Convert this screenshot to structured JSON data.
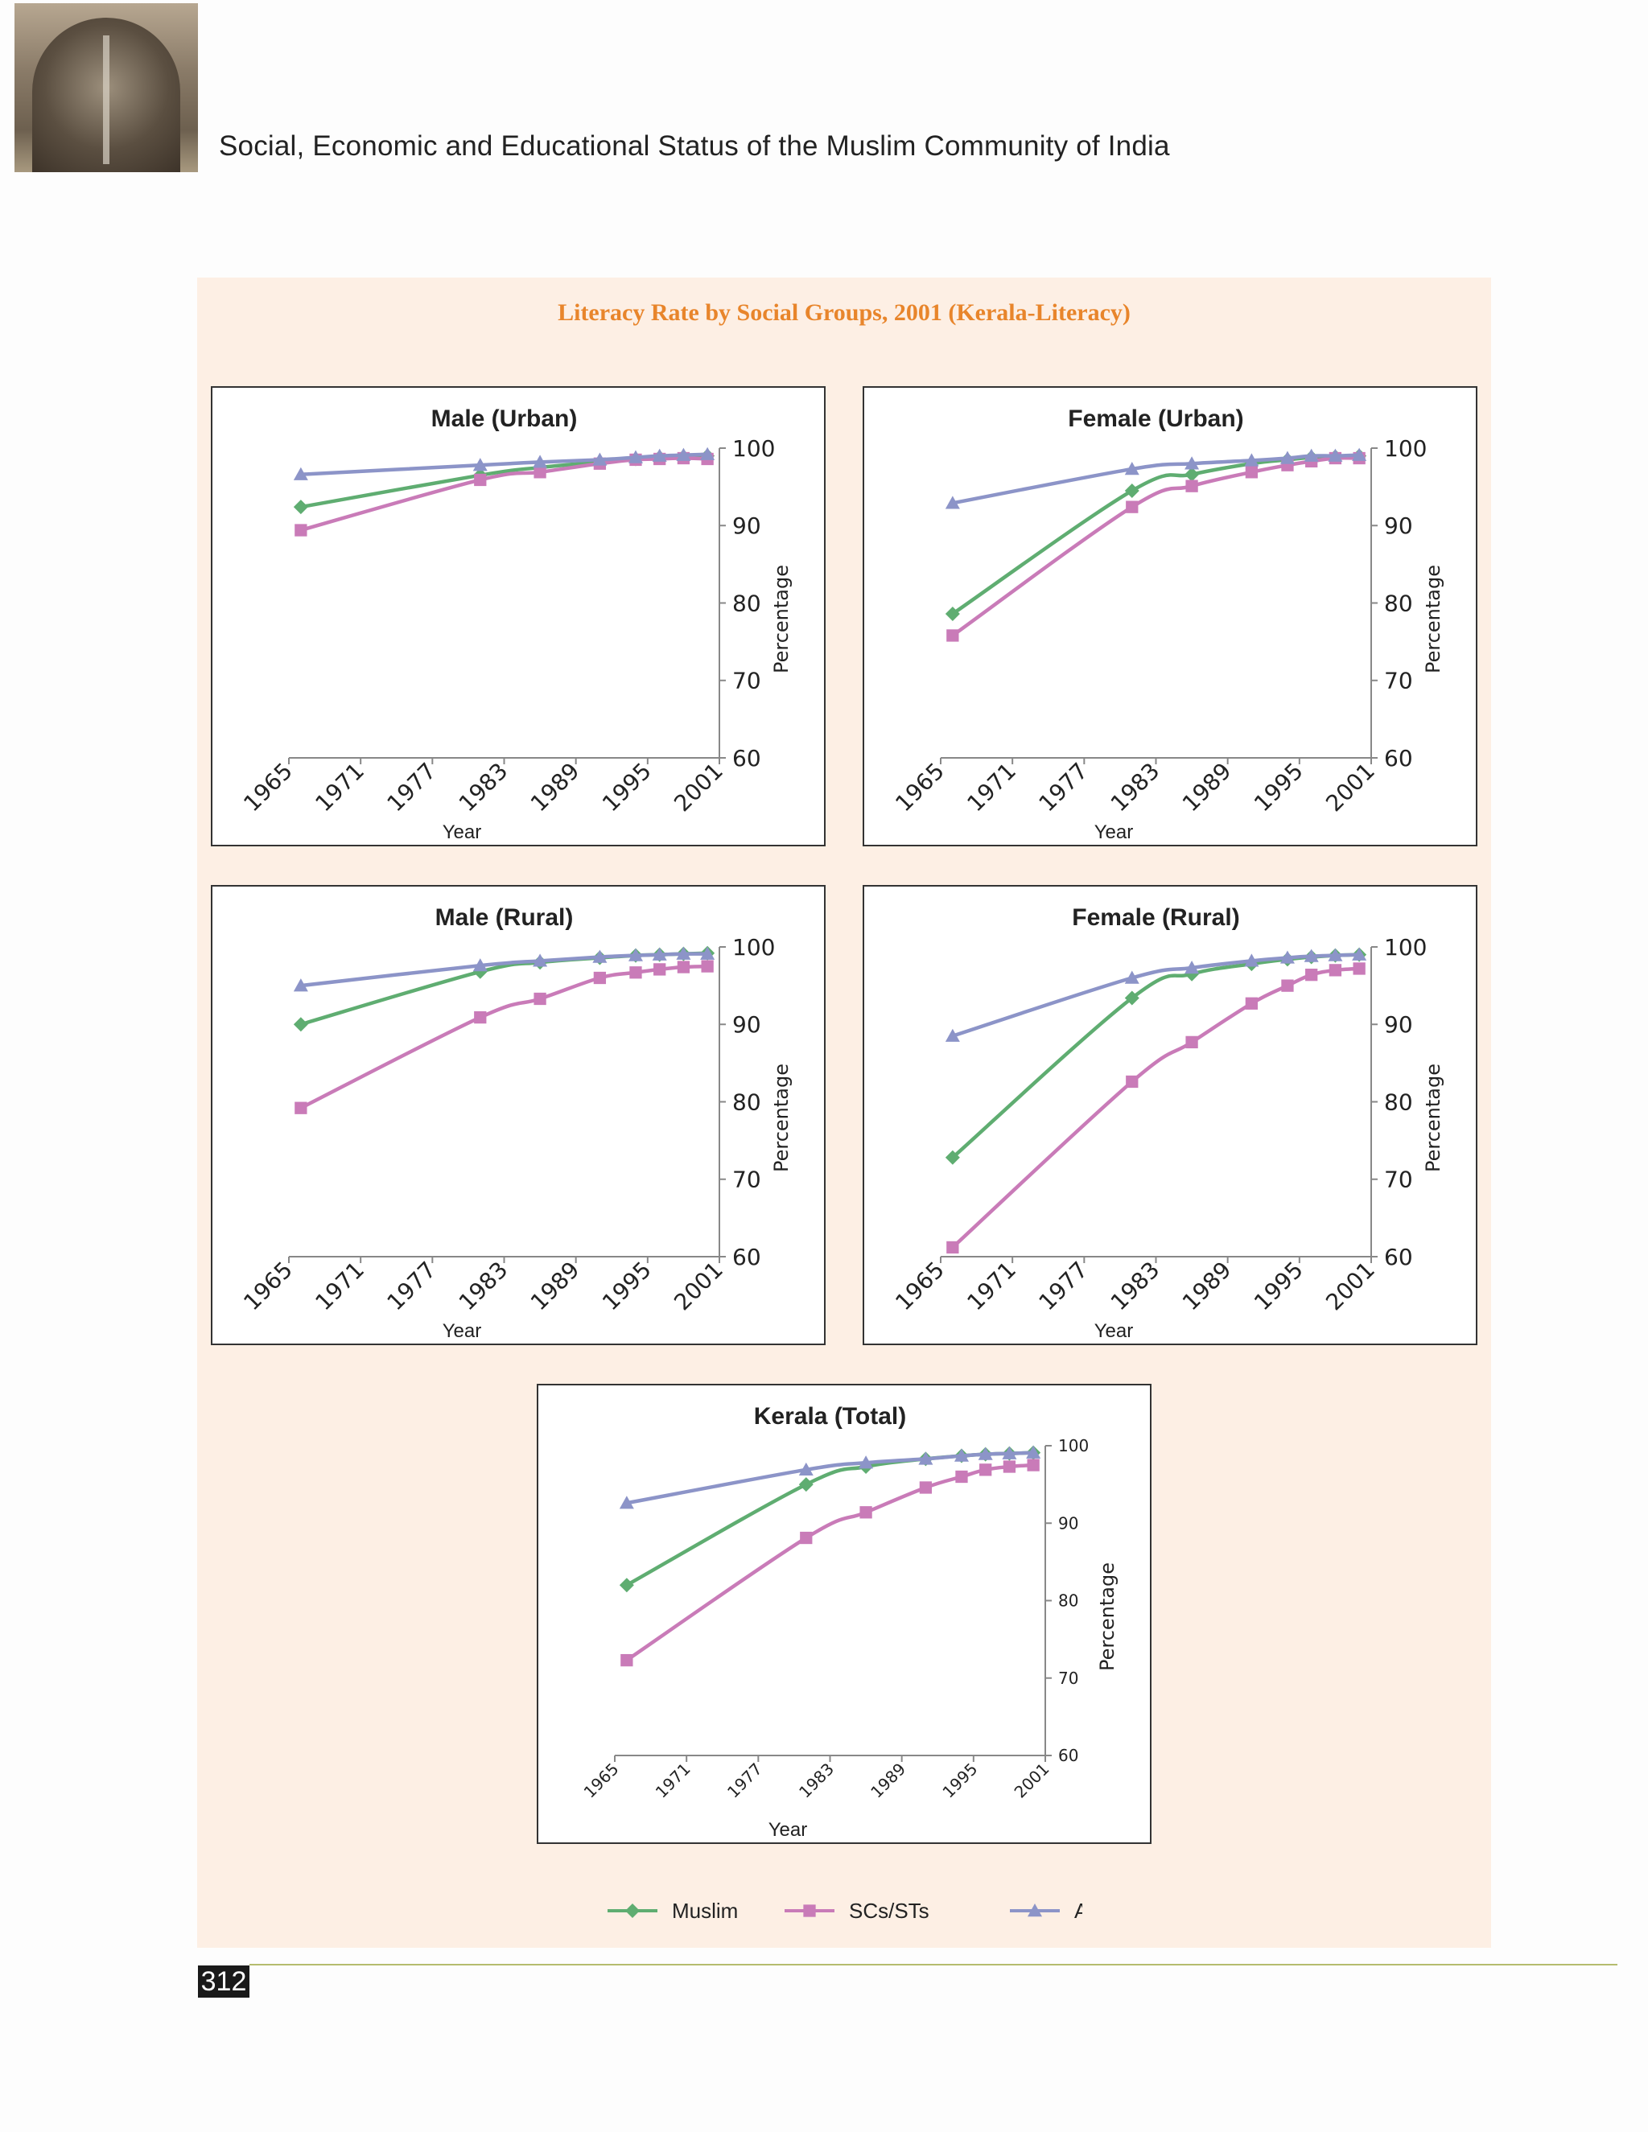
{
  "header": {
    "running_title": "Social, Economic and Educational Status of the Muslim Community of India",
    "image_name": "mosque-window-jali"
  },
  "figure": {
    "title": "Literacy Rate by Social Groups, 2001 (Kerala-Literacy)"
  },
  "page_number": "312",
  "colors": {
    "muslim": "#5fad71",
    "scst": "#c97bb8",
    "others": "#8c94c8",
    "axis": "#888888",
    "title_accent": "#e8852b",
    "panel_bg": "#fdefe4"
  },
  "legend": [
    {
      "name": "Muslim",
      "marker": "diamond"
    },
    {
      "name": "SCs/STs",
      "marker": "square"
    },
    {
      "name": "All Others",
      "marker": "triangle"
    }
  ],
  "chart_data": [
    {
      "type": "line",
      "title": "Male (Urban)",
      "xlabel": "Year",
      "ylabel": "Percentage",
      "xlim": [
        1965,
        2001
      ],
      "ylim": [
        60,
        100
      ],
      "x_ticks": [
        "1965",
        "1971",
        "1977",
        "1983",
        "1989",
        "1995",
        "2001"
      ],
      "y_ticks": [
        "60",
        "70",
        "80",
        "90",
        "100"
      ],
      "series": [
        {
          "name": "Muslim",
          "x": [
            1966,
            1981,
            1986,
            1991,
            1994,
            1996,
            1998,
            2000
          ],
          "y": [
            92.4,
            96.5,
            97.5,
            98.2,
            98.6,
            98.8,
            98.9,
            99.0
          ]
        },
        {
          "name": "SCs/STs",
          "x": [
            1966,
            1981,
            1986,
            1991,
            1994,
            1996,
            1998,
            2000
          ],
          "y": [
            89.4,
            95.9,
            96.9,
            98.0,
            98.5,
            98.6,
            98.7,
            98.6
          ]
        },
        {
          "name": "All Others",
          "x": [
            1966,
            1981,
            1986,
            1991,
            1994,
            1996,
            1998,
            2000
          ],
          "y": [
            96.6,
            97.8,
            98.2,
            98.5,
            98.8,
            99.0,
            99.1,
            99.2
          ]
        }
      ]
    },
    {
      "type": "line",
      "title": "Female (Urban)",
      "xlabel": "Year",
      "ylabel": "Percentage",
      "xlim": [
        1965,
        2001
      ],
      "ylim": [
        60,
        100
      ],
      "x_ticks": [
        "1965",
        "1971",
        "1977",
        "1983",
        "1989",
        "1995",
        "2001"
      ],
      "y_ticks": [
        "60",
        "70",
        "80",
        "90",
        "100"
      ],
      "series": [
        {
          "name": "Muslim",
          "x": [
            1966,
            1981,
            1986,
            1991,
            1994,
            1996,
            1998,
            2000
          ],
          "y": [
            78.6,
            94.5,
            96.6,
            98.0,
            98.5,
            98.8,
            98.9,
            99.0
          ]
        },
        {
          "name": "SCs/STs",
          "x": [
            1966,
            1981,
            1986,
            1991,
            1994,
            1996,
            1998,
            2000
          ],
          "y": [
            75.8,
            92.4,
            95.1,
            96.9,
            97.8,
            98.3,
            98.7,
            98.7
          ]
        },
        {
          "name": "All Others",
          "x": [
            1966,
            1981,
            1986,
            1991,
            1994,
            1996,
            1998,
            2000
          ],
          "y": [
            92.9,
            97.3,
            98.0,
            98.4,
            98.7,
            99.0,
            99.0,
            99.1
          ]
        }
      ]
    },
    {
      "type": "line",
      "title": "Male (Rural)",
      "xlabel": "Year",
      "ylabel": "Percentage",
      "xlim": [
        1965,
        2001
      ],
      "ylim": [
        60,
        100
      ],
      "x_ticks": [
        "1965",
        "1971",
        "1977",
        "1983",
        "1989",
        "1995",
        "2001"
      ],
      "y_ticks": [
        "60",
        "70",
        "80",
        "90",
        "100"
      ],
      "series": [
        {
          "name": "Muslim",
          "x": [
            1966,
            1981,
            1986,
            1991,
            1994,
            1996,
            1998,
            2000
          ],
          "y": [
            90.0,
            96.8,
            98.0,
            98.6,
            98.9,
            99.0,
            99.1,
            99.2
          ]
        },
        {
          "name": "SCs/STs",
          "x": [
            1966,
            1981,
            1986,
            1991,
            1994,
            1996,
            1998,
            2000
          ],
          "y": [
            79.2,
            90.9,
            93.3,
            96.0,
            96.7,
            97.1,
            97.4,
            97.5
          ]
        },
        {
          "name": "All Others",
          "x": [
            1966,
            1981,
            1986,
            1991,
            1994,
            1996,
            1998,
            2000
          ],
          "y": [
            95.0,
            97.6,
            98.2,
            98.7,
            98.9,
            99.0,
            99.1,
            99.1
          ]
        }
      ]
    },
    {
      "type": "line",
      "title": "Female (Rural)",
      "xlabel": "Year",
      "ylabel": "Percentage",
      "xlim": [
        1965,
        2001
      ],
      "ylim": [
        60,
        100
      ],
      "x_ticks": [
        "1965",
        "1971",
        "1977",
        "1983",
        "1989",
        "1995",
        "2001"
      ],
      "y_ticks": [
        "60",
        "70",
        "80",
        "90",
        "100"
      ],
      "series": [
        {
          "name": "Muslim",
          "x": [
            1966,
            1981,
            1986,
            1991,
            1994,
            1996,
            1998,
            2000
          ],
          "y": [
            72.8,
            93.4,
            96.5,
            97.8,
            98.4,
            98.7,
            98.9,
            99.0
          ]
        },
        {
          "name": "SCs/STs",
          "x": [
            1966,
            1981,
            1986,
            1991,
            1994,
            1996,
            1998,
            2000
          ],
          "y": [
            61.2,
            82.6,
            87.7,
            92.7,
            95.0,
            96.4,
            97.0,
            97.2
          ]
        },
        {
          "name": "All Others",
          "x": [
            1966,
            1981,
            1986,
            1991,
            1994,
            1996,
            1998,
            2000
          ],
          "y": [
            88.5,
            96.0,
            97.3,
            98.2,
            98.6,
            98.8,
            98.9,
            99.0
          ]
        }
      ]
    },
    {
      "type": "line",
      "title": "Kerala (Total)",
      "xlabel": "Year",
      "ylabel": "Percentage",
      "xlim": [
        1965,
        2001
      ],
      "ylim": [
        60,
        100
      ],
      "x_ticks": [
        "1965",
        "1971",
        "1977",
        "1983",
        "1989",
        "1995",
        "2001"
      ],
      "y_ticks": [
        "60",
        "70",
        "80",
        "90",
        "100"
      ],
      "series": [
        {
          "name": "Muslim",
          "x": [
            1966,
            1981,
            1986,
            1991,
            1994,
            1996,
            1998,
            2000
          ],
          "y": [
            82.0,
            95.0,
            97.3,
            98.3,
            98.7,
            98.9,
            99.0,
            99.1
          ]
        },
        {
          "name": "SCs/STs",
          "x": [
            1966,
            1981,
            1986,
            1991,
            1994,
            1996,
            1998,
            2000
          ],
          "y": [
            72.3,
            88.1,
            91.4,
            94.6,
            96.0,
            96.9,
            97.3,
            97.5
          ]
        },
        {
          "name": "All Others",
          "x": [
            1966,
            1981,
            1986,
            1991,
            1994,
            1996,
            1998,
            2000
          ],
          "y": [
            92.6,
            96.9,
            97.8,
            98.3,
            98.7,
            98.9,
            99.0,
            99.1
          ]
        }
      ]
    }
  ]
}
